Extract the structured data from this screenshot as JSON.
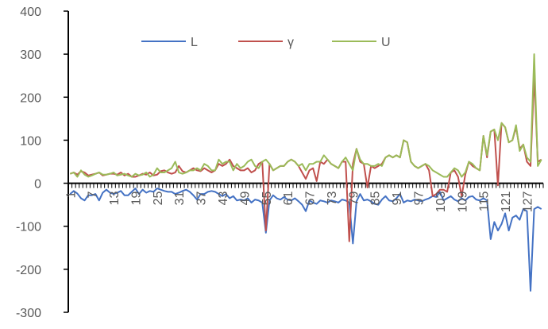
{
  "chart_data": {
    "type": "line",
    "title": "",
    "xlabel": "",
    "ylabel": "",
    "ylim": [
      -300,
      400
    ],
    "yticks": [
      -300,
      -200,
      -100,
      0,
      100,
      200,
      300,
      400
    ],
    "x_first": 1,
    "x_last": 131,
    "x_tick_step": 6,
    "legend_position": "top",
    "series": [
      {
        "name": "L",
        "color": "#4472C4",
        "values": [
          -25,
          -18,
          -24,
          -35,
          -22,
          -28,
          -28,
          -25,
          -35,
          -22,
          -15,
          -22,
          -25,
          -22,
          -18,
          -28,
          -22,
          -20,
          -12,
          -25,
          -15,
          -22,
          -18,
          -20,
          -12,
          -15,
          -18,
          -20,
          -20,
          -25,
          -22,
          -18,
          -15,
          -20,
          -28,
          -38,
          -25,
          -25,
          -20,
          -18,
          -20,
          -25,
          -30,
          -25,
          -35,
          -30,
          -40,
          -38,
          -40,
          -35,
          -45,
          -38,
          -40,
          -45,
          -42,
          -40,
          -28,
          -35,
          -38,
          -32,
          -38,
          -40,
          -35,
          -42,
          -50,
          -38,
          -40,
          -45,
          -48,
          -40,
          -42,
          -45,
          -40,
          -42,
          -45,
          -38,
          -40,
          -45,
          -48,
          -42,
          -45,
          -40,
          -38,
          -42,
          -48,
          -50,
          -38,
          -30,
          -40,
          -42,
          -35,
          -38,
          -45,
          -40,
          -42,
          -38,
          -40,
          -42,
          -38,
          -35,
          -30,
          -32,
          -38,
          -40,
          -35,
          -30,
          -38,
          -42,
          -35,
          -40,
          -32,
          -30,
          -38,
          -40,
          -35,
          -40,
          -130,
          -90,
          -110,
          -95,
          -70,
          -110,
          -80,
          -75,
          -85,
          -60,
          -65,
          -250,
          -60,
          -55,
          -60
        ],
        "overrides": {
          "55": -115,
          "79": -140,
          "17": -28,
          "5": -40,
          "9": -40,
          "66": -65,
          "81": -25,
          "92": -25,
          "103": -20
        }
      },
      {
        "name": "γ",
        "color": "#C0504D",
        "values": [
          22,
          25,
          20,
          28,
          25,
          18,
          20,
          22,
          25,
          18,
          20,
          22,
          22,
          20,
          25,
          18,
          22,
          20,
          15,
          18,
          22,
          20,
          25,
          18,
          20,
          28,
          30,
          25,
          22,
          25,
          40,
          28,
          25,
          30,
          35,
          30,
          28,
          35,
          30,
          25,
          30,
          45,
          40,
          45,
          55,
          40,
          35,
          30,
          30,
          35,
          25,
          30,
          45,
          50,
          -110,
          45,
          30,
          35,
          40,
          40,
          50,
          55,
          50,
          40,
          25,
          30,
          40,
          35,
          45,
          50,
          60,
          55,
          45,
          40,
          35,
          50,
          50,
          -135,
          45,
          80,
          50,
          45,
          -10,
          40,
          35,
          40,
          45,
          60,
          65,
          60,
          65,
          60,
          100,
          95,
          50,
          40,
          35,
          40,
          45,
          30,
          -30,
          -25,
          -15,
          -15,
          -20,
          25,
          30,
          15,
          -30,
          20,
          50,
          40,
          35,
          30,
          110,
          60,
          120,
          125,
          -5,
          140,
          130,
          95,
          100,
          130,
          80,
          90,
          50,
          40,
          250,
          50,
          55
        ],
        "overrides": {
          "18": 15,
          "66": 10,
          "67": 30,
          "69": 5,
          "71": 45
        }
      },
      {
        "name": "U",
        "color": "#9BBB59",
        "values": [
          22,
          25,
          15,
          30,
          20,
          15,
          18,
          22,
          25,
          20,
          20,
          22,
          25,
          18,
          20,
          22,
          18,
          15,
          22,
          18,
          20,
          25,
          15,
          20,
          35,
          25,
          25,
          30,
          35,
          50,
          25,
          22,
          25,
          30,
          30,
          35,
          30,
          45,
          40,
          30,
          30,
          55,
          45,
          50,
          50,
          30,
          45,
          35,
          40,
          50,
          55,
          40,
          35,
          50,
          55,
          45,
          30,
          35,
          40,
          40,
          50,
          55,
          50,
          40,
          45,
          30,
          45,
          45,
          50,
          50,
          65,
          55,
          45,
          40,
          35,
          50,
          60,
          45,
          30,
          80,
          55,
          45,
          45,
          40,
          40,
          45,
          40,
          60,
          65,
          60,
          65,
          60,
          100,
          95,
          50,
          40,
          35,
          40,
          45,
          40,
          30,
          25,
          20,
          15,
          15,
          25,
          35,
          30,
          15,
          25,
          50,
          45,
          35,
          30,
          110,
          65,
          120,
          125,
          100,
          140,
          130,
          95,
          100,
          135,
          75,
          90,
          60,
          50,
          300,
          40,
          55
        ],
        "overrides": {}
      }
    ]
  }
}
